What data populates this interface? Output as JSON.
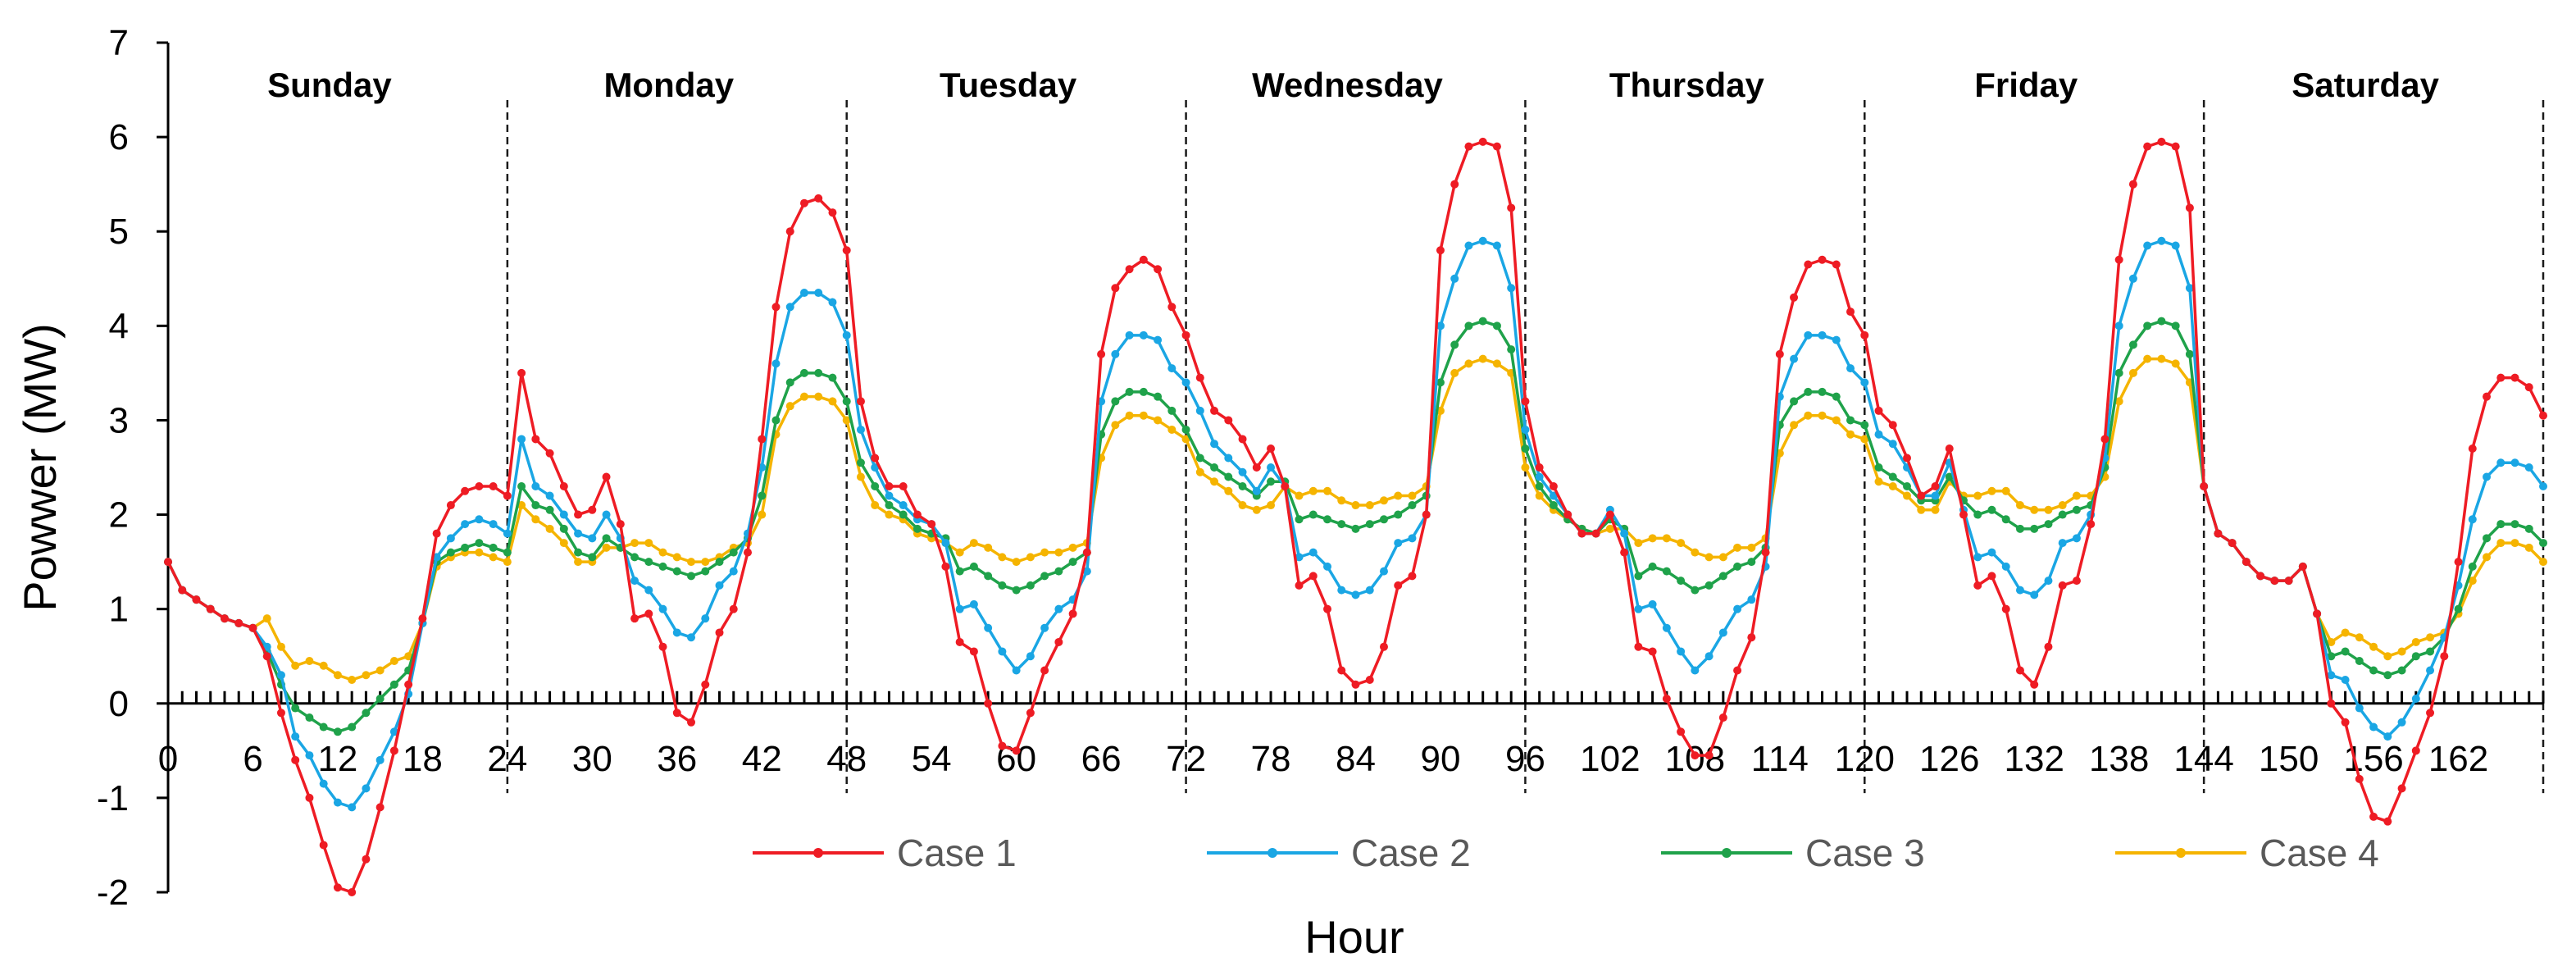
{
  "chart_data": {
    "type": "line",
    "title": "",
    "xlabel": "Hour",
    "ylabel": "Powwer (MW)",
    "ylim": [
      -2,
      7
    ],
    "xlim": [
      0,
      168
    ],
    "yticks": [
      "-2",
      "-1",
      "0",
      "1",
      "2",
      "3",
      "4",
      "5",
      "6",
      "7"
    ],
    "xticks": [
      "0",
      "6",
      "12",
      "18",
      "24",
      "30",
      "36",
      "42",
      "48",
      "54",
      "60",
      "66",
      "72",
      "78",
      "84",
      "90",
      "96",
      "102",
      "108",
      "114",
      "120",
      "126",
      "132",
      "138",
      "144",
      "150",
      "156",
      "162"
    ],
    "days": [
      "Sunday",
      "Monday",
      "Tuesday",
      "Wednesday",
      "Thursday",
      "Friday",
      "Saturday"
    ],
    "day_boundaries": [
      24,
      48,
      72,
      96,
      120,
      144,
      168
    ],
    "grid": false,
    "legend_position": "bottom-center",
    "series": [
      {
        "name": "Case 1",
        "color": "#ee1c24",
        "values": [
          1.5,
          1.2,
          1.1,
          1.0,
          0.9,
          0.85,
          0.8,
          0.5,
          -0.1,
          -0.6,
          -1.0,
          -1.5,
          -1.95,
          -2.0,
          -1.65,
          -1.1,
          -0.5,
          0.2,
          0.9,
          1.8,
          2.1,
          2.25,
          2.3,
          2.3,
          2.2,
          3.5,
          2.8,
          2.65,
          2.3,
          2.0,
          2.05,
          2.4,
          1.9,
          0.9,
          0.95,
          0.6,
          -0.1,
          -0.2,
          0.2,
          0.75,
          1.0,
          1.6,
          2.8,
          4.2,
          5.0,
          5.3,
          5.35,
          5.2,
          4.8,
          3.2,
          2.6,
          2.3,
          2.3,
          2.0,
          1.9,
          1.45,
          0.65,
          0.55,
          0.0,
          -0.45,
          -0.5,
          -0.1,
          0.35,
          0.65,
          0.95,
          1.6,
          3.7,
          4.4,
          4.6,
          4.7,
          4.6,
          4.2,
          3.9,
          3.45,
          3.1,
          3.0,
          2.8,
          2.5,
          2.7,
          2.3,
          1.25,
          1.35,
          1.0,
          0.35,
          0.2,
          0.25,
          0.6,
          1.25,
          1.35,
          2.0,
          4.8,
          5.5,
          5.9,
          5.95,
          5.9,
          5.25,
          3.2,
          2.5,
          2.3,
          2.0,
          1.8,
          1.8,
          2.0,
          1.6,
          0.6,
          0.55,
          0.05,
          -0.3,
          -0.55,
          -0.55,
          -0.15,
          0.35,
          0.7,
          1.6,
          3.7,
          4.3,
          4.65,
          4.7,
          4.65,
          4.15,
          3.9,
          3.1,
          2.95,
          2.6,
          2.2,
          2.3,
          2.7,
          2.0,
          1.25,
          1.35,
          1.0,
          0.35,
          0.2,
          0.6,
          1.25,
          1.3,
          1.9,
          2.8,
          4.7,
          5.5,
          5.9,
          5.95,
          5.9,
          5.25,
          2.3,
          1.8,
          1.7,
          1.5,
          1.35,
          1.3,
          1.3,
          1.45,
          0.95,
          0.0,
          -0.2,
          -0.8,
          -1.2,
          -1.25,
          -0.9,
          -0.5,
          -0.1,
          0.5,
          1.5,
          2.7,
          3.25,
          3.45,
          3.45,
          3.35,
          3.05
        ]
      },
      {
        "name": "Case 2",
        "color": "#1aa6e4",
        "values": [
          1.5,
          1.2,
          1.1,
          1.0,
          0.9,
          0.85,
          0.8,
          0.6,
          0.3,
          -0.35,
          -0.55,
          -0.85,
          -1.05,
          -1.1,
          -0.9,
          -0.6,
          -0.3,
          0.1,
          0.85,
          1.55,
          1.75,
          1.9,
          1.95,
          1.9,
          1.8,
          2.8,
          2.3,
          2.2,
          2.0,
          1.8,
          1.75,
          2.0,
          1.75,
          1.3,
          1.2,
          1.0,
          0.75,
          0.7,
          0.9,
          1.25,
          1.4,
          1.8,
          2.5,
          3.6,
          4.2,
          4.35,
          4.35,
          4.25,
          3.9,
          2.9,
          2.5,
          2.2,
          2.1,
          1.95,
          1.9,
          1.7,
          1.0,
          1.05,
          0.8,
          0.55,
          0.35,
          0.5,
          0.8,
          1.0,
          1.1,
          1.4,
          3.2,
          3.7,
          3.9,
          3.9,
          3.85,
          3.55,
          3.4,
          3.1,
          2.75,
          2.6,
          2.45,
          2.25,
          2.5,
          2.3,
          1.55,
          1.6,
          1.45,
          1.2,
          1.15,
          1.2,
          1.4,
          1.7,
          1.75,
          2.0,
          4.0,
          4.5,
          4.85,
          4.9,
          4.85,
          4.4,
          2.9,
          2.4,
          2.2,
          2.0,
          1.8,
          1.8,
          2.05,
          1.8,
          1.0,
          1.05,
          0.8,
          0.55,
          0.35,
          0.5,
          0.75,
          1.0,
          1.1,
          1.45,
          3.25,
          3.65,
          3.9,
          3.9,
          3.85,
          3.55,
          3.4,
          2.85,
          2.75,
          2.5,
          2.2,
          2.2,
          2.55,
          2.05,
          1.55,
          1.6,
          1.45,
          1.2,
          1.15,
          1.3,
          1.7,
          1.75,
          2.0,
          2.6,
          4.0,
          4.5,
          4.85,
          4.9,
          4.85,
          4.4,
          2.3,
          1.8,
          1.7,
          1.5,
          1.35,
          1.3,
          1.3,
          1.45,
          0.95,
          0.3,
          0.25,
          -0.05,
          -0.25,
          -0.35,
          -0.2,
          0.05,
          0.35,
          0.7,
          1.25,
          1.95,
          2.4,
          2.55,
          2.55,
          2.5,
          2.3
        ]
      },
      {
        "name": "Case 3",
        "color": "#1fa24a",
        "values": [
          1.5,
          1.2,
          1.1,
          1.0,
          0.9,
          0.85,
          0.8,
          0.55,
          0.2,
          -0.05,
          -0.15,
          -0.25,
          -0.3,
          -0.25,
          -0.1,
          0.05,
          0.2,
          0.35,
          0.85,
          1.5,
          1.6,
          1.65,
          1.7,
          1.65,
          1.6,
          2.3,
          2.1,
          2.05,
          1.85,
          1.6,
          1.55,
          1.75,
          1.65,
          1.55,
          1.5,
          1.45,
          1.4,
          1.35,
          1.4,
          1.5,
          1.6,
          1.75,
          2.2,
          3.0,
          3.4,
          3.5,
          3.5,
          3.45,
          3.2,
          2.55,
          2.3,
          2.1,
          2.0,
          1.85,
          1.8,
          1.75,
          1.4,
          1.45,
          1.35,
          1.25,
          1.2,
          1.25,
          1.35,
          1.4,
          1.5,
          1.6,
          2.85,
          3.2,
          3.3,
          3.3,
          3.25,
          3.1,
          2.9,
          2.6,
          2.5,
          2.4,
          2.3,
          2.2,
          2.35,
          2.35,
          1.95,
          2.0,
          1.95,
          1.9,
          1.85,
          1.9,
          1.95,
          2.0,
          2.1,
          2.2,
          3.4,
          3.8,
          4.0,
          4.05,
          4.0,
          3.75,
          2.7,
          2.3,
          2.1,
          1.95,
          1.85,
          1.8,
          1.95,
          1.85,
          1.35,
          1.45,
          1.4,
          1.3,
          1.2,
          1.25,
          1.35,
          1.45,
          1.5,
          1.65,
          2.95,
          3.2,
          3.3,
          3.3,
          3.25,
          3.0,
          2.95,
          2.5,
          2.4,
          2.3,
          2.15,
          2.15,
          2.4,
          2.15,
          2.0,
          2.05,
          1.95,
          1.85,
          1.85,
          1.9,
          2.0,
          2.05,
          2.1,
          2.5,
          3.5,
          3.8,
          4.0,
          4.05,
          4.0,
          3.7,
          2.3,
          1.8,
          1.7,
          1.5,
          1.35,
          1.3,
          1.3,
          1.45,
          0.95,
          0.5,
          0.55,
          0.45,
          0.35,
          0.3,
          0.35,
          0.5,
          0.55,
          0.7,
          1.0,
          1.45,
          1.75,
          1.9,
          1.9,
          1.85,
          1.7
        ]
      },
      {
        "name": "Case 4",
        "color": "#f5b400",
        "values": [
          1.5,
          1.2,
          1.1,
          1.0,
          0.9,
          0.85,
          0.8,
          0.9,
          0.6,
          0.4,
          0.45,
          0.4,
          0.3,
          0.25,
          0.3,
          0.35,
          0.45,
          0.5,
          0.85,
          1.45,
          1.55,
          1.6,
          1.6,
          1.55,
          1.5,
          2.1,
          1.95,
          1.85,
          1.7,
          1.5,
          1.5,
          1.65,
          1.65,
          1.7,
          1.7,
          1.6,
          1.55,
          1.5,
          1.5,
          1.55,
          1.65,
          1.7,
          2.0,
          2.85,
          3.15,
          3.25,
          3.25,
          3.2,
          3.0,
          2.4,
          2.1,
          2.0,
          1.95,
          1.8,
          1.75,
          1.7,
          1.6,
          1.7,
          1.65,
          1.55,
          1.5,
          1.55,
          1.6,
          1.6,
          1.65,
          1.7,
          2.6,
          2.95,
          3.05,
          3.05,
          3.0,
          2.9,
          2.8,
          2.45,
          2.35,
          2.25,
          2.1,
          2.05,
          2.1,
          2.3,
          2.2,
          2.25,
          2.25,
          2.15,
          2.1,
          2.1,
          2.15,
          2.2,
          2.2,
          2.3,
          3.1,
          3.5,
          3.6,
          3.65,
          3.6,
          3.5,
          2.5,
          2.2,
          2.05,
          1.95,
          1.85,
          1.8,
          1.85,
          1.85,
          1.7,
          1.75,
          1.75,
          1.7,
          1.6,
          1.55,
          1.55,
          1.65,
          1.65,
          1.75,
          2.65,
          2.95,
          3.05,
          3.05,
          3.0,
          2.85,
          2.8,
          2.35,
          2.3,
          2.2,
          2.05,
          2.05,
          2.35,
          2.2,
          2.2,
          2.25,
          2.25,
          2.1,
          2.05,
          2.05,
          2.1,
          2.2,
          2.2,
          2.4,
          3.2,
          3.5,
          3.65,
          3.65,
          3.6,
          3.4,
          2.3,
          1.8,
          1.7,
          1.5,
          1.35,
          1.3,
          1.3,
          1.45,
          0.95,
          0.65,
          0.75,
          0.7,
          0.6,
          0.5,
          0.55,
          0.65,
          0.7,
          0.75,
          0.95,
          1.3,
          1.55,
          1.7,
          1.7,
          1.65,
          1.5
        ]
      }
    ]
  }
}
